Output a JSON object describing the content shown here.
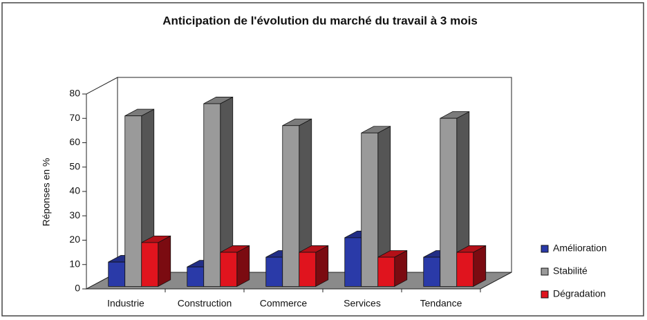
{
  "chart_data": {
    "type": "bar",
    "title": "Anticipation de l'évolution du marché du travail à 3 mois",
    "ylabel": "Réponses en %",
    "categories": [
      "Industrie",
      "Construction",
      "Commerce",
      "Services",
      "Tendance"
    ],
    "series": [
      {
        "name": "Amélioration",
        "color": "#2a3aa8",
        "values": [
          10,
          8,
          12,
          20,
          12
        ]
      },
      {
        "name": "Stabilité",
        "color": "#9a9a9a",
        "values": [
          70,
          75,
          66,
          63,
          69
        ]
      },
      {
        "name": "Dégradation",
        "color": "#e0141e",
        "values": [
          18,
          14,
          14,
          12,
          14
        ]
      }
    ],
    "ylim": [
      0,
      80
    ],
    "yticks": [
      0,
      10,
      20,
      30,
      40,
      50,
      60,
      70,
      80
    ],
    "grid": false,
    "legend": "right"
  }
}
